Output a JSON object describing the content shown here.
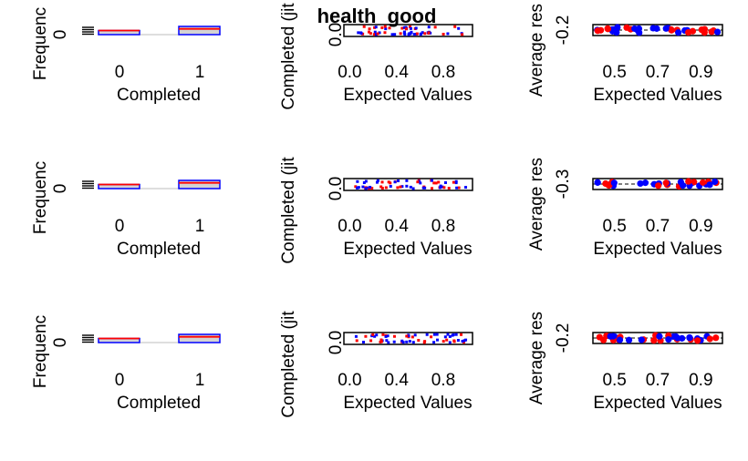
{
  "page_title": "health_good",
  "chart_data": [
    {
      "type": "bar",
      "row": 0,
      "col": 0,
      "categories": [
        "0",
        "1"
      ],
      "xlabel": "Completed",
      "ylabel": "Frequenc",
      "yticks": [
        "0"
      ],
      "series": [
        {
          "values": [
            1,
            2
          ]
        },
        {
          "values": [
            0.5,
            0.7
          ]
        }
      ]
    },
    {
      "type": "scatter",
      "row": 0,
      "col": 1,
      "xlabel": "Expected Values",
      "ylabel": "Completed (jit",
      "xticks": [
        "0.0",
        "0.4",
        "0.8"
      ],
      "xlim": [
        -0.05,
        1.05
      ],
      "yticks": [
        "0.0"
      ]
    },
    {
      "type": "scatter",
      "row": 0,
      "col": 2,
      "xlabel": "Expected Values",
      "ylabel": "Average res",
      "xticks": [
        "0.5",
        "0.7",
        "0.9"
      ],
      "xlim": [
        0.4,
        1.0
      ],
      "yticks": [
        "-0.2"
      ]
    },
    {
      "type": "bar",
      "row": 1,
      "col": 0,
      "categories": [
        "0",
        "1"
      ],
      "xlabel": "Completed",
      "ylabel": "Frequenc",
      "yticks": [
        "0"
      ],
      "series": [
        {
          "values": [
            1,
            2
          ]
        },
        {
          "values": [
            0.5,
            0.7
          ]
        }
      ]
    },
    {
      "type": "scatter",
      "row": 1,
      "col": 1,
      "xlabel": "Expected Values",
      "ylabel": "Completed (jit",
      "xticks": [
        "0.0",
        "0.4",
        "0.8"
      ],
      "xlim": [
        -0.05,
        1.05
      ],
      "yticks": [
        "0.0"
      ]
    },
    {
      "type": "scatter",
      "row": 1,
      "col": 2,
      "xlabel": "Expected Values",
      "ylabel": "Average res",
      "xticks": [
        "0.5",
        "0.7",
        "0.9"
      ],
      "xlim": [
        0.4,
        1.0
      ],
      "yticks": [
        "-0.3"
      ]
    },
    {
      "type": "bar",
      "row": 2,
      "col": 0,
      "categories": [
        "0",
        "1"
      ],
      "xlabel": "Completed",
      "ylabel": "Frequenc",
      "yticks": [
        "0"
      ],
      "series": [
        {
          "values": [
            1,
            2
          ]
        },
        {
          "values": [
            0.5,
            0.7
          ]
        }
      ]
    },
    {
      "type": "scatter",
      "row": 2,
      "col": 1,
      "xlabel": "Expected Values",
      "ylabel": "Completed (jit",
      "xticks": [
        "0.0",
        "0.4",
        "0.8"
      ],
      "xlim": [
        -0.05,
        1.05
      ],
      "yticks": [
        "0.0"
      ]
    },
    {
      "type": "scatter",
      "row": 2,
      "col": 2,
      "xlabel": "Expected Values",
      "ylabel": "Average res",
      "xticks": [
        "0.5",
        "0.7",
        "0.9"
      ],
      "xlim": [
        0.4,
        1.0
      ],
      "yticks": [
        "-0.2"
      ]
    }
  ],
  "colors": {
    "blue": "#0000ff",
    "red": "#ff0000",
    "fill": "#d3d3d3",
    "axis": "#000000",
    "grey": "#bebebe"
  }
}
